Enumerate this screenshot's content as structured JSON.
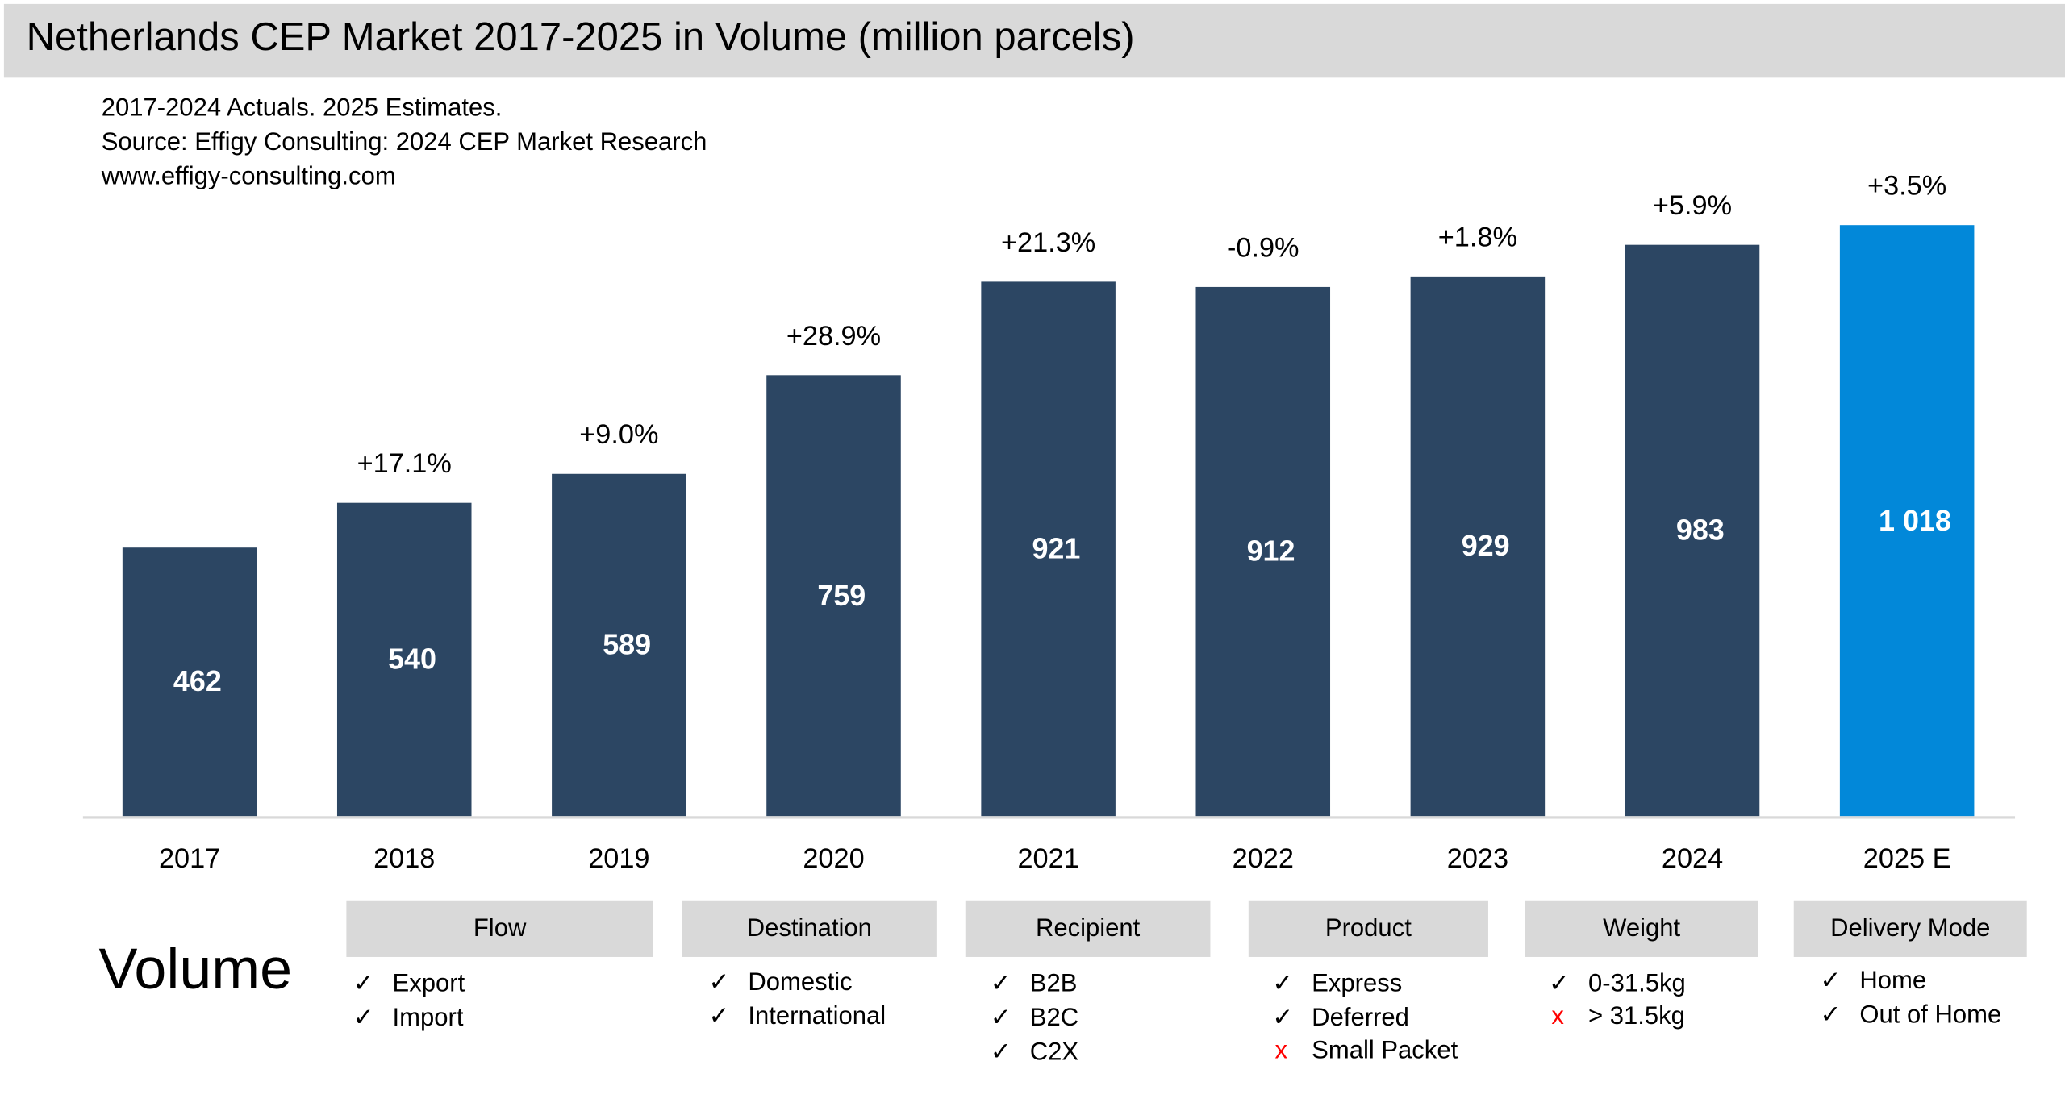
{
  "title": "Netherlands CEP Market 2017-2025 in Volume (million parcels)",
  "subtitle_lines": [
    "2017-2024 Actuals. 2025 Estimates.",
    "Source: Effigy Consulting: 2024 CEP Market Research",
    "www.effigy-consulting.com"
  ],
  "colors": {
    "actual": "#2c4663",
    "estimate": "#0288d9",
    "title_bar": "#d9d9d9",
    "cross": "#ff0000"
  },
  "chart_data": {
    "type": "bar",
    "categories": [
      "2017",
      "2018",
      "2019",
      "2020",
      "2021",
      "2022",
      "2023",
      "2024",
      "2025 E"
    ],
    "values": [
      462,
      540,
      589,
      759,
      921,
      912,
      929,
      983,
      1018
    ],
    "value_labels": [
      "462",
      "540",
      "589",
      "759",
      "921",
      "912",
      "929",
      "983",
      "1 018"
    ],
    "growth_labels": [
      "",
      "+17.1%",
      "+9.0%",
      "+28.9%",
      "+21.3%",
      "-0.9%",
      "+1.8%",
      "+5.9%",
      "+3.5%"
    ],
    "estimate_flags": [
      false,
      false,
      false,
      false,
      false,
      false,
      false,
      false,
      true
    ],
    "ylim": [
      0,
      1018
    ],
    "grid": false
  },
  "segments": {
    "label": "Volume",
    "groups": [
      {
        "name": "Flow",
        "items": [
          {
            "mark": "check",
            "text": "Export"
          },
          {
            "mark": "check",
            "text": "Import"
          }
        ]
      },
      {
        "name": "Destination",
        "items": [
          {
            "mark": "check",
            "text": "Domestic"
          },
          {
            "mark": "check",
            "text": "International"
          }
        ]
      },
      {
        "name": "Recipient",
        "items": [
          {
            "mark": "check",
            "text": "B2B"
          },
          {
            "mark": "check",
            "text": "B2C"
          },
          {
            "mark": "check",
            "text": "C2X"
          }
        ]
      },
      {
        "name": "Product",
        "items": [
          {
            "mark": "check",
            "text": "Express"
          },
          {
            "mark": "check",
            "text": "Deferred"
          },
          {
            "mark": "cross",
            "text": "Small Packet"
          }
        ]
      },
      {
        "name": "Weight",
        "items": [
          {
            "mark": "check",
            "text": "0-31.5kg"
          },
          {
            "mark": "cross",
            "text": "> 31.5kg"
          }
        ]
      },
      {
        "name": "Delivery Mode",
        "items": [
          {
            "mark": "check",
            "text": "Home"
          },
          {
            "mark": "check",
            "text": "Out of Home"
          }
        ]
      }
    ],
    "check_symbol": "✓",
    "cross_symbol": "x"
  }
}
